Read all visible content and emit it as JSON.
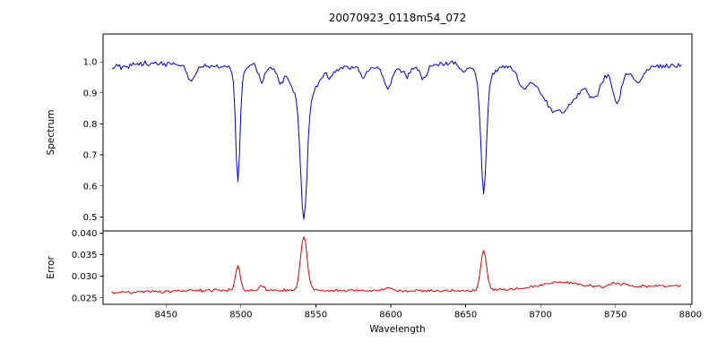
{
  "chart_data": [
    {
      "type": "line",
      "name": "spectrum",
      "title": "20070923_0118m54_072",
      "ylabel": "Spectrum",
      "xlabel": "",
      "line_color": "#0000cd",
      "xlim": [
        8408,
        8801
      ],
      "ylim": [
        0.455,
        1.09
      ],
      "x_range": [
        8414,
        8794
      ],
      "x_ticks": {
        "values": [
          8450,
          8500,
          8550,
          8600,
          8650,
          8700,
          8750,
          8800
        ],
        "labels": [
          "8450",
          "8500",
          "8550",
          "8600",
          "8650",
          "8700",
          "8750",
          "8800"
        ]
      },
      "y_ticks": {
        "values": [
          1.0,
          0.9,
          0.8,
          0.7,
          0.6,
          0.5
        ],
        "labels": [
          "1.0",
          "0.9",
          "0.8",
          "0.7",
          "0.6",
          "0.5"
        ]
      },
      "continuum": 0.985,
      "noise_amplitude": 0.012,
      "absorption_lines": [
        {
          "center": 8467,
          "depth": 0.045,
          "width": 2.5
        },
        {
          "center": 8498,
          "depth": 0.335,
          "width": 1.4
        },
        {
          "center": 8498,
          "depth": 0.04,
          "width": 4
        },
        {
          "center": 8514,
          "depth": 0.055,
          "width": 2
        },
        {
          "center": 8526,
          "depth": 0.04,
          "width": 2
        },
        {
          "center": 8542,
          "depth": 0.38,
          "width": 2.1
        },
        {
          "center": 8542,
          "depth": 0.105,
          "width": 7
        },
        {
          "center": 8560,
          "depth": 0.025,
          "width": 2
        },
        {
          "center": 8582,
          "depth": 0.03,
          "width": 2
        },
        {
          "center": 8598,
          "depth": 0.065,
          "width": 2.5
        },
        {
          "center": 8611,
          "depth": 0.03,
          "width": 2
        },
        {
          "center": 8622,
          "depth": 0.045,
          "width": 2
        },
        {
          "center": 8648,
          "depth": 0.025,
          "width": 2
        },
        {
          "center": 8662,
          "depth": 0.355,
          "width": 1.8
        },
        {
          "center": 8662,
          "depth": 0.06,
          "width": 5
        },
        {
          "center": 8688,
          "depth": 0.05,
          "width": 3
        },
        {
          "center": 8712,
          "depth": 0.15,
          "width": 12
        },
        {
          "center": 8736,
          "depth": 0.07,
          "width": 4
        },
        {
          "center": 8751,
          "depth": 0.1,
          "width": 3
        },
        {
          "center": 8765,
          "depth": 0.045,
          "width": 3
        }
      ]
    },
    {
      "type": "line",
      "name": "error",
      "ylabel": "Error",
      "xlabel": "Wavelength",
      "line_color": "#dd0000",
      "xlim": [
        8408,
        8801
      ],
      "ylim": [
        0.0235,
        0.0405
      ],
      "x_range": [
        8414,
        8794
      ],
      "y_ticks": {
        "values": [
          0.04,
          0.035,
          0.03,
          0.025
        ],
        "labels": [
          "0.040",
          "0.035",
          "0.030",
          "0.025"
        ]
      },
      "baseline": 0.0262,
      "slope_per_angstrom": 3.5e-06,
      "noise_amplitude": 0.0004,
      "peaks": [
        {
          "center": 8498,
          "height": 0.0055,
          "width": 1.6
        },
        {
          "center": 8514,
          "height": 0.0012,
          "width": 1.5
        },
        {
          "center": 8542,
          "height": 0.0125,
          "width": 2.2
        },
        {
          "center": 8598,
          "height": 0.0007,
          "width": 3
        },
        {
          "center": 8662,
          "height": 0.0092,
          "width": 1.9
        },
        {
          "center": 8712,
          "height": 0.0013,
          "width": 12
        },
        {
          "center": 8751,
          "height": 0.0008,
          "width": 4
        }
      ]
    }
  ]
}
